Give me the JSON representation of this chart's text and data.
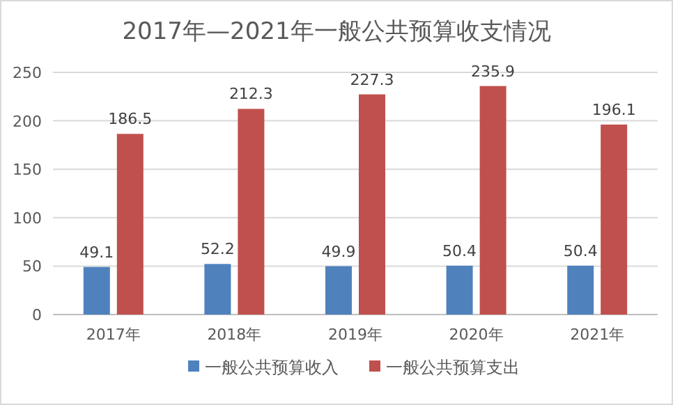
{
  "chart_data": {
    "type": "bar",
    "title": "2017年—2021年一般公共预算收支情况",
    "categories": [
      "2017年",
      "2018年",
      "2019年",
      "2020年",
      "2021年"
    ],
    "series": [
      {
        "name": "一般公共预算收入",
        "color": "#4f81bd",
        "values": [
          49.1,
          52.2,
          49.9,
          50.4,
          50.4
        ]
      },
      {
        "name": "一般公共预算支出",
        "color": "#c0504d",
        "values": [
          186.5,
          212.3,
          227.3,
          235.9,
          196.1
        ]
      }
    ],
    "ylim": [
      0,
      250
    ],
    "yticks": [
      0,
      50,
      100,
      150,
      200,
      250
    ],
    "grid": "y",
    "legend": "bottom",
    "data_labels": true
  }
}
